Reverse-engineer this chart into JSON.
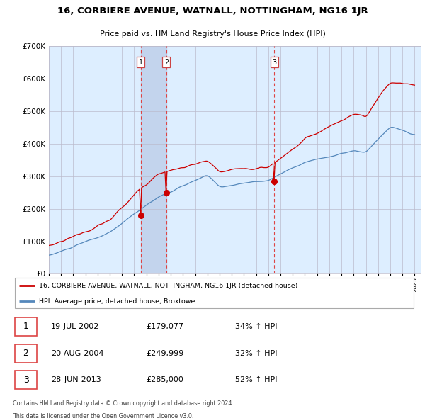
{
  "title": "16, CORBIERE AVENUE, WATNALL, NOTTINGHAM, NG16 1JR",
  "subtitle": "Price paid vs. HM Land Registry's House Price Index (HPI)",
  "legend_label_red": "16, CORBIERE AVENUE, WATNALL, NOTTINGHAM, NG16 1JR (detached house)",
  "legend_label_blue": "HPI: Average price, detached house, Broxtowe",
  "footer_line1": "Contains HM Land Registry data © Crown copyright and database right 2024.",
  "footer_line2": "This data is licensed under the Open Government Licence v3.0.",
  "transactions": [
    {
      "num": 1,
      "date": "19-JUL-2002",
      "price": "£179,077",
      "hpi": "34% ↑ HPI"
    },
    {
      "num": 2,
      "date": "20-AUG-2004",
      "price": "£249,999",
      "hpi": "32% ↑ HPI"
    },
    {
      "num": 3,
      "date": "28-JUN-2013",
      "price": "£285,000",
      "hpi": "52% ↑ HPI"
    }
  ],
  "transaction_years": [
    2002.54,
    2004.64,
    2013.49
  ],
  "transaction_prices": [
    179077,
    249999,
    285000
  ],
  "ylim": [
    0,
    700000
  ],
  "yticks": [
    0,
    100000,
    200000,
    300000,
    400000,
    500000,
    600000,
    700000
  ],
  "red_color": "#cc0000",
  "blue_color": "#5588bb",
  "bg_color": "#ddeeff",
  "vline_color": "#dd4444",
  "grid_color": "#bbbbcc"
}
